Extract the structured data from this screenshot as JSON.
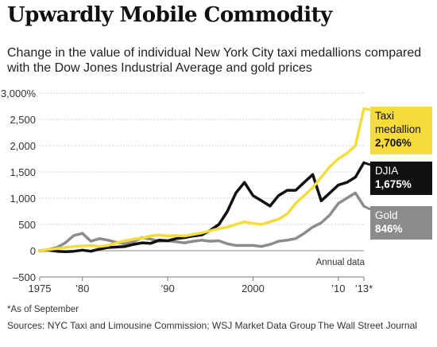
{
  "header": {
    "title": "Upwardly Mobile Commodity",
    "subtitle": "Change in the value of individual New York City taxi medallions compared with the Dow Jones Industrial Average and gold prices"
  },
  "footer": {
    "footnote": "*As of September",
    "sources": "Sources: NYC Taxi and Limousine Commission; WSJ Market Data Group",
    "credit": "The Wall Street Journal"
  },
  "chart_data": {
    "type": "line",
    "annotation": "Annual data",
    "ylim": [
      -500,
      3000
    ],
    "xlim": [
      1975,
      2013
    ],
    "y_ticks": [
      {
        "value": 3000,
        "label": "3,000%"
      },
      {
        "value": 2500,
        "label": "2,500"
      },
      {
        "value": 2000,
        "label": "2,000"
      },
      {
        "value": 1500,
        "label": "1,500"
      },
      {
        "value": 1000,
        "label": "1,000"
      },
      {
        "value": 500,
        "label": "500"
      },
      {
        "value": 0,
        "label": "0"
      },
      {
        "value": -500,
        "label": "–500"
      }
    ],
    "x_ticks": [
      {
        "value": 1975,
        "label": "1975"
      },
      {
        "value": 1980,
        "label": "’80"
      },
      {
        "value": 1990,
        "label": "’90"
      },
      {
        "value": 2000,
        "label": "2000"
      },
      {
        "value": 2010,
        "label": "’10"
      },
      {
        "value": 2013,
        "label": "’13*"
      }
    ],
    "grid": true,
    "series": [
      {
        "name": "Gold",
        "end_label": "846%",
        "color": "#8c8c8c",
        "x": [
          1975,
          1976,
          1977,
          1978,
          1979,
          1980,
          1981,
          1982,
          1983,
          1984,
          1985,
          1986,
          1987,
          1988,
          1989,
          1990,
          1991,
          1992,
          1993,
          1994,
          1995,
          1996,
          1997,
          1998,
          1999,
          2000,
          2001,
          2002,
          2003,
          2004,
          2005,
          2006,
          2007,
          2008,
          2009,
          2010,
          2011,
          2012,
          2013
        ],
        "y": [
          0,
          20,
          60,
          150,
          290,
          330,
          180,
          230,
          200,
          160,
          130,
          170,
          250,
          220,
          180,
          190,
          170,
          150,
          180,
          200,
          180,
          190,
          130,
          100,
          100,
          100,
          80,
          120,
          180,
          200,
          230,
          330,
          450,
          530,
          680,
          900,
          1000,
          1100,
          846
        ]
      },
      {
        "name": "DJIA",
        "end_label": "1,675%",
        "color": "#111111",
        "x": [
          1975,
          1976,
          1977,
          1978,
          1979,
          1980,
          1981,
          1982,
          1983,
          1984,
          1985,
          1986,
          1987,
          1988,
          1989,
          1990,
          1991,
          1992,
          1993,
          1994,
          1995,
          1996,
          1997,
          1998,
          1999,
          2000,
          2001,
          2002,
          2003,
          2004,
          2005,
          2006,
          2007,
          2008,
          2009,
          2010,
          2011,
          2012,
          2013
        ],
        "y": [
          0,
          10,
          -10,
          -20,
          -10,
          10,
          -10,
          30,
          60,
          70,
          80,
          120,
          150,
          140,
          200,
          190,
          230,
          250,
          280,
          300,
          390,
          500,
          750,
          1100,
          1300,
          1050,
          950,
          850,
          1050,
          1150,
          1150,
          1300,
          1450,
          950,
          1100,
          1250,
          1300,
          1400,
          1675
        ]
      },
      {
        "name": "Taxi medallion",
        "end_label": "2,706%",
        "color": "#f5dc3a",
        "x": [
          1975,
          1976,
          1977,
          1978,
          1979,
          1980,
          1981,
          1982,
          1983,
          1984,
          1985,
          1986,
          1987,
          1988,
          1989,
          1990,
          1991,
          1992,
          1993,
          1994,
          1995,
          1996,
          1997,
          1998,
          1999,
          2000,
          2001,
          2002,
          2003,
          2004,
          2005,
          2006,
          2007,
          2008,
          2009,
          2010,
          2011,
          2012,
          2013
        ],
        "y": [
          0,
          20,
          40,
          60,
          80,
          90,
          100,
          80,
          100,
          150,
          190,
          220,
          240,
          280,
          300,
          280,
          290,
          280,
          310,
          340,
          380,
          420,
          450,
          500,
          550,
          520,
          500,
          550,
          600,
          700,
          900,
          1050,
          1200,
          1400,
          1600,
          1750,
          1850,
          2000,
          2706
        ]
      }
    ]
  }
}
